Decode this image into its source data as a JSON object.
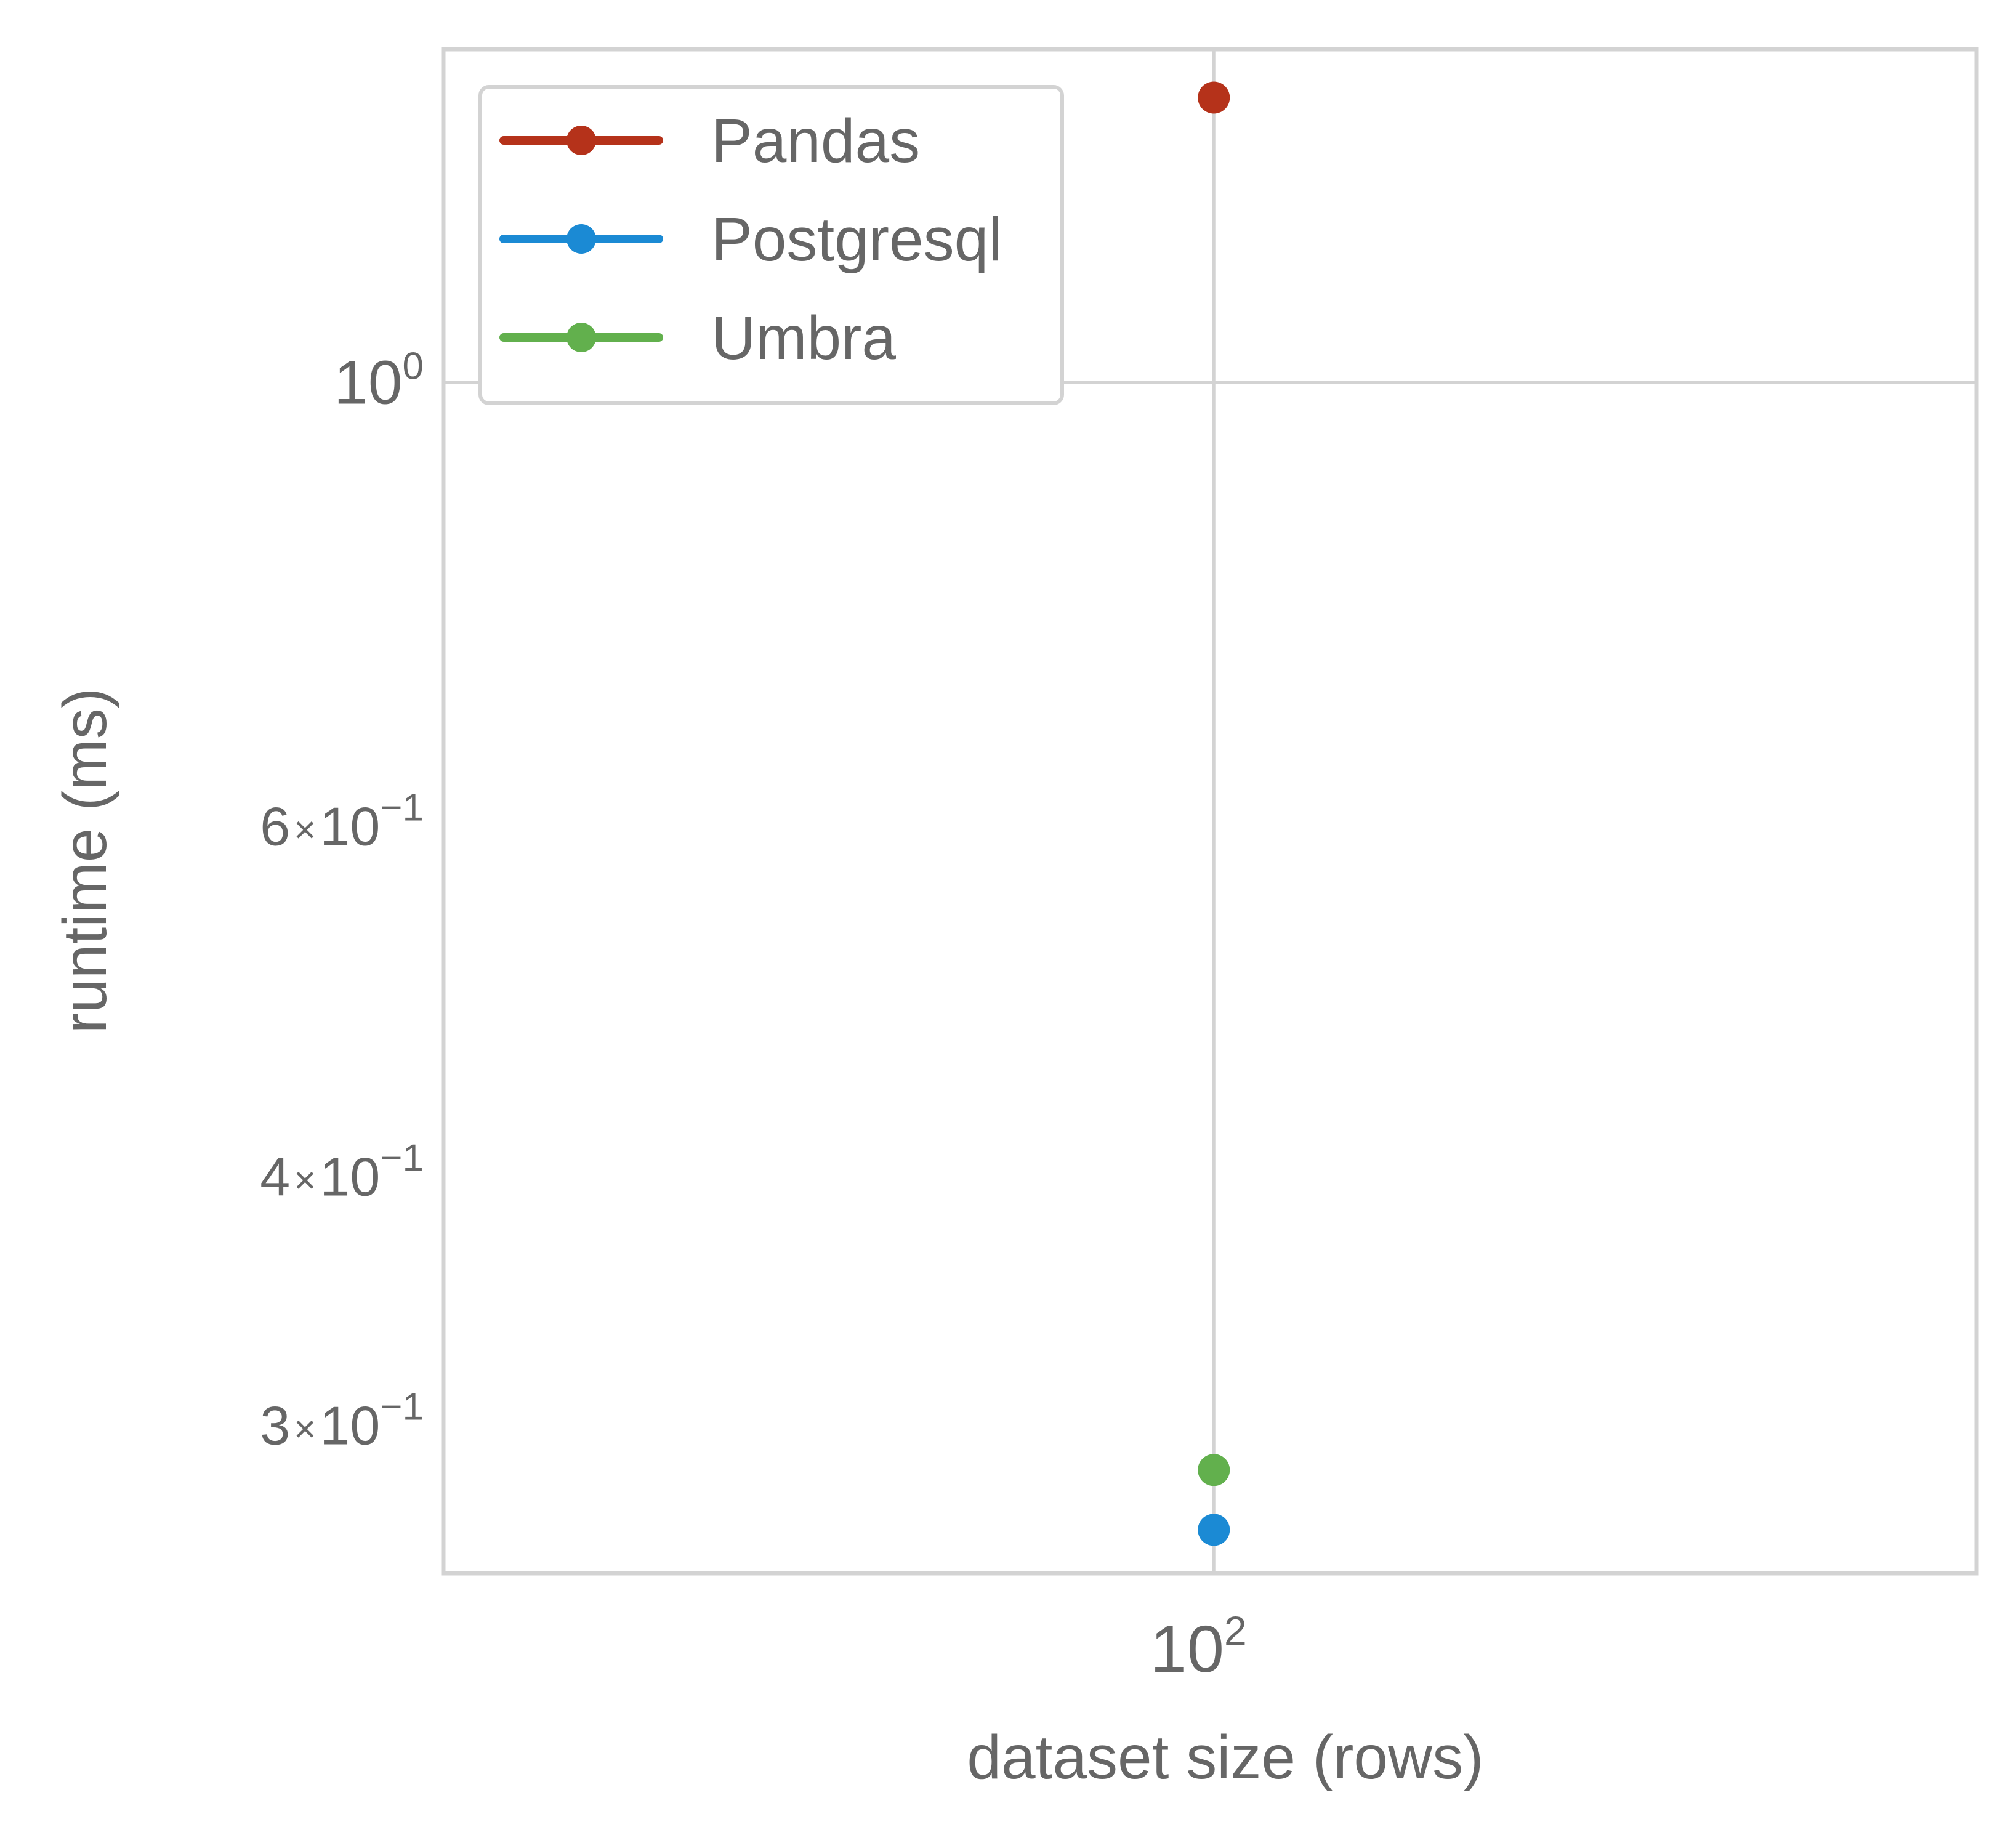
{
  "chart_data": {
    "type": "scatter",
    "x": [
      100
    ],
    "series": [
      {
        "name": "Pandas",
        "values": [
          1.39
        ],
        "color": "#b5321a"
      },
      {
        "name": "Postgresql",
        "values": [
          0.265
        ],
        "color": "#1b8ad4"
      },
      {
        "name": "Umbra",
        "values": [
          0.284
        ],
        "color": "#62b04d"
      }
    ],
    "xlabel": "dataset size (rows)",
    "ylabel": "runtime (ms)",
    "xscale": "log",
    "yscale": "log",
    "xlim": [
      63,
      158
    ],
    "ylim": [
      0.252,
      1.47
    ],
    "x_ticks": [
      {
        "value": 100,
        "base": "10",
        "exp": "2"
      }
    ],
    "y_ticks": [
      {
        "value": 1.0,
        "mant": "",
        "base": "10",
        "exp": "0"
      },
      {
        "value": 0.6,
        "mant": "6",
        "base": "10",
        "exp": "−1"
      },
      {
        "value": 0.4,
        "mant": "4",
        "base": "10",
        "exp": "−1"
      },
      {
        "value": 0.3,
        "mant": "3",
        "base": "10",
        "exp": "−1"
      }
    ],
    "grid": true,
    "legend_position": "top-left",
    "colors": {
      "frame": "#d3d3d3",
      "grid": "#d3d3d3",
      "text": "#666666"
    }
  }
}
